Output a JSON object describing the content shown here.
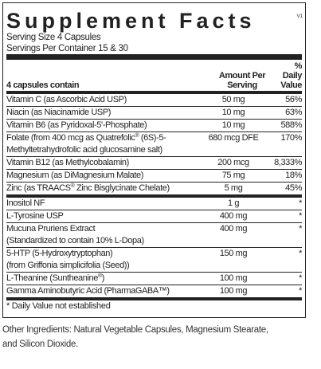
{
  "header": {
    "title": "Supplement Facts",
    "version": "V1"
  },
  "serving": {
    "size": "Serving Size 4 Capsules",
    "per_container": "Servings Per Container 15 & 30"
  },
  "table": {
    "columns": [
      "4 capsules contain",
      "Amount Per Serving",
      "% Daily Value"
    ],
    "sections": [
      [
        [
          "Vitamin C (as Ascorbic Acid USP)",
          "50 mg",
          "56%"
        ],
        [
          "Niacin (as Niacinamide USP)",
          "10 mg",
          "63%"
        ],
        [
          "Vitamin B6 (as Pyridoxal-5'-Phosphate)",
          "10 mg",
          "588%"
        ],
        [
          [
            "Folate (from 400 mcg as Quatrefolic® (6S)-5-",
            "Methyltetrahydrofolic acid glucosamine salt)"
          ],
          "680 mcg DFE",
          "170%"
        ],
        [
          "Vitamin B12 (as Methylcobalamin)",
          "200 mcg",
          "8,333%"
        ],
        [
          "Magnesium (as DiMagnesium Malate)",
          "75 mg",
          "18%"
        ],
        [
          "Zinc (as TRAACS® Zinc Bisglycinate Chelate)",
          "5 mg",
          "45%"
        ]
      ],
      [
        [
          "Inositol NF",
          "1 g",
          "*"
        ],
        [
          "L-Tyrosine USP",
          "400 mg",
          "*"
        ],
        [
          [
            "Mucuna Pruriens Extract",
            "(Standardized to contain 10% L-Dopa)"
          ],
          "400 mg",
          "*"
        ],
        [
          [
            "5-HTP (5-Hydroxytryptophan)",
            "(from Griffonia simplicifolia (Seed))"
          ],
          "150 mg",
          "*"
        ],
        [
          "L-Theanine (Suntheanine®)",
          "100 mg",
          "*"
        ],
        [
          "Gamma Aminobutyric Acid (PharmaGABA™)",
          "100 mg",
          "*"
        ]
      ]
    ]
  },
  "footnote": "* Daily Value not established",
  "other_ingredients": [
    "Other Ingredients: Natural Vegetable Capsules, Magnesium Stearate,",
    "and Silicon Dioxide."
  ]
}
